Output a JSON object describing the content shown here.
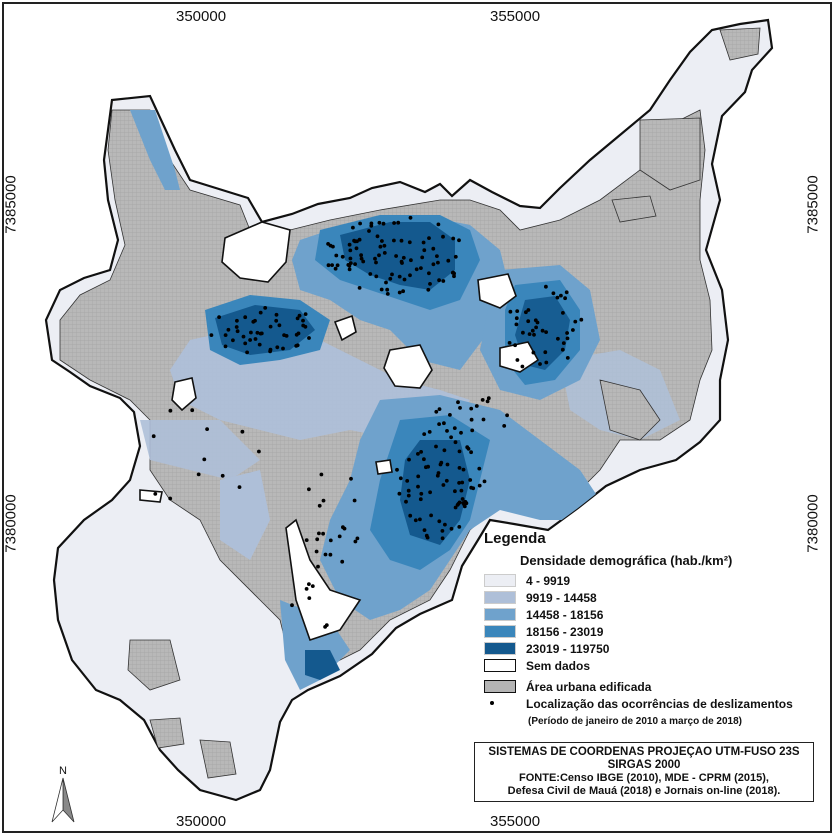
{
  "map": {
    "coords": {
      "top": [
        "350000",
        "355000"
      ],
      "bottom": [
        "350000",
        "355000"
      ],
      "left": [
        "7385000",
        "7380000"
      ],
      "right": [
        "7385000",
        "7380000"
      ]
    },
    "colors": {
      "class1": "#eceef4",
      "class2": "#aebfd8",
      "class3": "#6fa2cc",
      "class4": "#3a86bb",
      "class5": "#14598e",
      "urban": "#b4b4b4",
      "nodata": "#ffffff",
      "outline": "#111111"
    }
  },
  "legend": {
    "title": "Legenda",
    "density_title": "Densidade demográfica (hab./km²)",
    "classes": [
      {
        "label": "4 - 9919",
        "color": "#eceef4"
      },
      {
        "label": "9919 - 14458",
        "color": "#aebfd8"
      },
      {
        "label": "14458 - 18156",
        "color": "#6fa2cc"
      },
      {
        "label": "18156 - 23019",
        "color": "#3a86bb"
      },
      {
        "label": "23019 - 119750",
        "color": "#14598e"
      },
      {
        "label": "Sem dados",
        "color": "#ffffff"
      }
    ],
    "urban_label": "Área urbana edificada",
    "occurrences_label": "Localização das ocorrências de deslizamentos",
    "period_note": "(Período de janeiro de 2010 a março de 2018)"
  },
  "source": {
    "system_line1": "SISTEMAS DE COORDENAS PROJEÇAO UTM-FUSO 23S",
    "system_line2": "SIRGAS 2000",
    "source_line1": "FONTE:Censo IBGE (2010), MDE - CPRM (2015),",
    "source_line2": "Defesa Civil de Mauá (2018) e Jornais on-line (2018)."
  },
  "north_label": "N"
}
